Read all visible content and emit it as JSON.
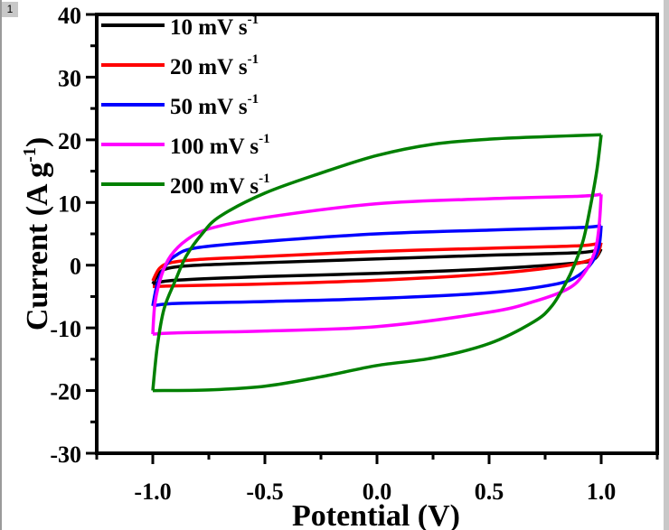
{
  "page_badge": "1",
  "chart_data": {
    "type": "line",
    "title": "",
    "xlabel": "Potential (V)",
    "ylabel": "Current (A g",
    "ylabel_superscript": "-1",
    "ylabel_suffix": ")",
    "xlim": [
      -1.25,
      1.25
    ],
    "ylim": [
      -30,
      40
    ],
    "xticks": [
      -1.0,
      -0.5,
      0.0,
      0.5,
      1.0
    ],
    "xtick_labels": [
      "-1.0",
      "-0.5",
      "0.0",
      "0.5",
      "1.0"
    ],
    "yticks": [
      -30,
      -20,
      -10,
      0,
      10,
      20,
      30,
      40
    ],
    "ytick_labels": [
      "-30",
      "-20",
      "-10",
      "0",
      "10",
      "20",
      "30",
      "40"
    ],
    "grid": false,
    "legend_position": "top-left",
    "series": [
      {
        "name": "10 mV s",
        "superscript": "-1",
        "color": "#000000",
        "anodic": [
          [
            -1.0,
            -3.0
          ],
          [
            -0.97,
            -1.2
          ],
          [
            -0.92,
            -0.4
          ],
          [
            -0.8,
            0.0
          ],
          [
            -0.5,
            0.4
          ],
          [
            0.0,
            1.0
          ],
          [
            0.5,
            1.6
          ],
          [
            0.9,
            2.0
          ],
          [
            1.0,
            2.6
          ]
        ],
        "cathodic": [
          [
            1.0,
            2.6
          ],
          [
            0.97,
            1.0
          ],
          [
            0.9,
            0.4
          ],
          [
            0.5,
            -0.6
          ],
          [
            0.0,
            -1.3
          ],
          [
            -0.5,
            -1.8
          ],
          [
            -0.9,
            -2.4
          ],
          [
            -1.0,
            -3.0
          ]
        ]
      },
      {
        "name": "20 mV s",
        "superscript": "-1",
        "color": "#ff0000",
        "anodic": [
          [
            -1.0,
            -2.5
          ],
          [
            -0.97,
            -0.5
          ],
          [
            -0.92,
            0.4
          ],
          [
            -0.8,
            0.9
          ],
          [
            -0.5,
            1.4
          ],
          [
            0.0,
            2.2
          ],
          [
            0.5,
            2.7
          ],
          [
            0.9,
            3.1
          ],
          [
            1.0,
            3.6
          ]
        ],
        "cathodic": [
          [
            1.0,
            3.6
          ],
          [
            0.98,
            1.5
          ],
          [
            0.93,
            0.6
          ],
          [
            0.8,
            -0.3
          ],
          [
            0.5,
            -1.4
          ],
          [
            0.0,
            -2.4
          ],
          [
            -0.5,
            -3.0
          ],
          [
            -0.9,
            -3.3
          ],
          [
            -1.0,
            -3.4
          ]
        ]
      },
      {
        "name": "50 mV s",
        "superscript": "-1",
        "color": "#0000ff",
        "anodic": [
          [
            -1.0,
            -6.5
          ],
          [
            -0.98,
            -3.0
          ],
          [
            -0.95,
            -0.5
          ],
          [
            -0.9,
            1.5
          ],
          [
            -0.8,
            2.8
          ],
          [
            -0.5,
            3.8
          ],
          [
            0.0,
            5.0
          ],
          [
            0.5,
            5.6
          ],
          [
            0.9,
            6.0
          ],
          [
            1.0,
            6.3
          ]
        ],
        "cathodic": [
          [
            1.0,
            6.3
          ],
          [
            0.99,
            3.0
          ],
          [
            0.96,
            0.5
          ],
          [
            0.9,
            -1.6
          ],
          [
            0.8,
            -3.0
          ],
          [
            0.5,
            -4.4
          ],
          [
            0.0,
            -5.3
          ],
          [
            -0.5,
            -5.8
          ],
          [
            -0.9,
            -6.1
          ],
          [
            -1.0,
            -6.5
          ]
        ]
      },
      {
        "name": "100 mV s",
        "superscript": "-1",
        "color": "#ff00ff",
        "anodic": [
          [
            -1.0,
            -11.0
          ],
          [
            -0.99,
            -6.0
          ],
          [
            -0.96,
            -1.5
          ],
          [
            -0.92,
            1.5
          ],
          [
            -0.85,
            4.0
          ],
          [
            -0.75,
            5.8
          ],
          [
            -0.5,
            7.6
          ],
          [
            0.0,
            9.8
          ],
          [
            0.5,
            10.6
          ],
          [
            0.9,
            11.0
          ],
          [
            1.0,
            11.3
          ]
        ],
        "cathodic": [
          [
            1.0,
            11.3
          ],
          [
            0.99,
            6.0
          ],
          [
            0.97,
            2.0
          ],
          [
            0.92,
            -1.5
          ],
          [
            0.85,
            -3.8
          ],
          [
            0.7,
            -5.8
          ],
          [
            0.5,
            -7.5
          ],
          [
            0.0,
            -9.8
          ],
          [
            -0.5,
            -10.5
          ],
          [
            -0.9,
            -10.8
          ],
          [
            -1.0,
            -11.0
          ]
        ]
      },
      {
        "name": "200 mV s",
        "superscript": "-1",
        "color": "#008000",
        "anodic": [
          [
            -1.0,
            -20.0
          ],
          [
            -0.98,
            -13.0
          ],
          [
            -0.95,
            -7.0
          ],
          [
            -0.9,
            -2.5
          ],
          [
            -0.85,
            1.5
          ],
          [
            -0.78,
            5.0
          ],
          [
            -0.7,
            7.8
          ],
          [
            -0.5,
            11.5
          ],
          [
            -0.25,
            14.7
          ],
          [
            0.0,
            17.5
          ],
          [
            0.25,
            19.3
          ],
          [
            0.5,
            20.1
          ],
          [
            0.75,
            20.5
          ],
          [
            1.0,
            20.8
          ]
        ],
        "cathodic": [
          [
            1.0,
            20.8
          ],
          [
            0.98,
            15.0
          ],
          [
            0.95,
            9.0
          ],
          [
            0.92,
            4.0
          ],
          [
            0.88,
            0.0
          ],
          [
            0.84,
            -3.0
          ],
          [
            0.78,
            -6.5
          ],
          [
            0.7,
            -9.0
          ],
          [
            0.5,
            -12.5
          ],
          [
            0.25,
            -14.8
          ],
          [
            0.0,
            -16.0
          ],
          [
            -0.25,
            -17.8
          ],
          [
            -0.5,
            -19.3
          ],
          [
            -0.75,
            -19.9
          ],
          [
            -1.0,
            -20.0
          ]
        ]
      }
    ]
  }
}
